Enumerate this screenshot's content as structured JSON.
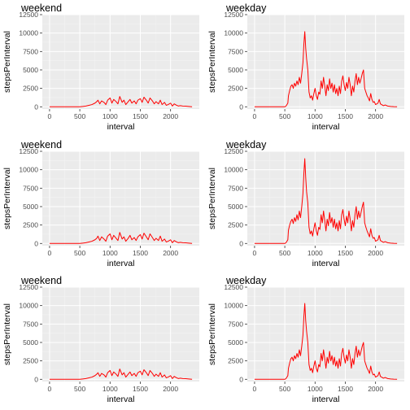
{
  "figure": {
    "background": "#ffffff",
    "panel_background": "#ebebeb",
    "grid_major": "#ffffff",
    "grid_minor": "#f4f4f4",
    "line_color": "#ff0000"
  },
  "chart_data": [
    {
      "type": "line",
      "title": "weekend",
      "xlabel": "interval",
      "ylabel": "stepsPerInterval",
      "xlim": [
        -120,
        2475
      ],
      "ylim": [
        -300,
        12500
      ],
      "xticks": [
        0,
        500,
        1000,
        1500,
        2000
      ],
      "yticks": [
        0,
        2500,
        5000,
        7500,
        10000,
        12500
      ],
      "grid": true,
      "x": [
        0,
        500,
        550,
        600,
        650,
        700,
        750,
        780,
        800,
        830,
        860,
        900,
        930,
        960,
        1000,
        1030,
        1060,
        1100,
        1130,
        1160,
        1200,
        1230,
        1260,
        1300,
        1330,
        1360,
        1400,
        1430,
        1460,
        1500,
        1530,
        1560,
        1600,
        1630,
        1660,
        1700,
        1730,
        1760,
        1800,
        1830,
        1860,
        1900,
        1930,
        1960,
        2000,
        2030,
        2060,
        2100,
        2130,
        2160,
        2200,
        2250,
        2300,
        2355
      ],
      "y": [
        0,
        0,
        50,
        100,
        200,
        300,
        500,
        700,
        900,
        400,
        800,
        600,
        300,
        900,
        1200,
        500,
        1000,
        700,
        400,
        1400,
        600,
        900,
        300,
        700,
        1000,
        500,
        800,
        400,
        900,
        1100,
        600,
        1300,
        900,
        500,
        1200,
        800,
        400,
        700,
        400,
        900,
        300,
        600,
        200,
        300,
        500,
        100,
        400,
        200,
        100,
        150,
        100,
        80,
        50,
        0
      ]
    },
    {
      "type": "line",
      "title": "weekday",
      "xlabel": "interval",
      "ylabel": "stepsPerInterval",
      "xlim": [
        -120,
        2475
      ],
      "ylim": [
        -300,
        12500
      ],
      "xticks": [
        0,
        500,
        1000,
        1500,
        2000
      ],
      "yticks": [
        0,
        2500,
        5000,
        7500,
        10000,
        12500
      ],
      "grid": true,
      "x": [
        0,
        500,
        520,
        550,
        560,
        580,
        600,
        620,
        640,
        660,
        680,
        700,
        720,
        740,
        760,
        780,
        800,
        815,
        830,
        845,
        860,
        880,
        900,
        920,
        940,
        960,
        980,
        1000,
        1020,
        1040,
        1060,
        1080,
        1100,
        1120,
        1140,
        1160,
        1180,
        1200,
        1220,
        1240,
        1260,
        1280,
        1300,
        1320,
        1340,
        1360,
        1380,
        1400,
        1420,
        1440,
        1460,
        1480,
        1500,
        1520,
        1540,
        1560,
        1580,
        1600,
        1620,
        1640,
        1660,
        1680,
        1700,
        1720,
        1740,
        1760,
        1780,
        1800,
        1820,
        1840,
        1860,
        1880,
        1900,
        1920,
        1940,
        1960,
        1980,
        2000,
        2020,
        2040,
        2060,
        2080,
        2100,
        2130,
        2160,
        2200,
        2250,
        2300,
        2355
      ],
      "y": [
        0,
        0,
        100,
        500,
        1500,
        2200,
        2800,
        3000,
        2500,
        3200,
        2800,
        3500,
        3000,
        4000,
        3200,
        4500,
        6000,
        8500,
        10200,
        8000,
        6500,
        5000,
        2000,
        1200,
        1500,
        900,
        1800,
        2500,
        1500,
        1000,
        2000,
        1700,
        3500,
        2500,
        4000,
        2800,
        1500,
        3000,
        2200,
        3800,
        2500,
        3200,
        2000,
        3000,
        1800,
        2500,
        1500,
        2800,
        1800,
        3500,
        4200,
        3000,
        2200,
        3300,
        2500,
        4000,
        3000,
        1500,
        2800,
        2000,
        3500,
        4500,
        3000,
        4000,
        3200,
        3800,
        4500,
        5000,
        2500,
        2000,
        1500,
        1200,
        800,
        1800,
        1000,
        600,
        700,
        300,
        400,
        500,
        1000,
        400,
        300,
        150,
        250,
        100,
        50,
        20,
        0
      ]
    },
    {
      "type": "line",
      "title": "weekend",
      "xlabel": "interval",
      "ylabel": "stepsPerInterval",
      "xlim": [
        -120,
        2475
      ],
      "ylim": [
        -300,
        12500
      ],
      "xticks": [
        0,
        500,
        1000,
        1500,
        2000
      ],
      "yticks": [
        0,
        2500,
        5000,
        7500,
        10000,
        12500
      ],
      "grid": true,
      "x": [
        0,
        500,
        550,
        600,
        650,
        700,
        750,
        780,
        800,
        830,
        860,
        900,
        930,
        960,
        1000,
        1030,
        1060,
        1100,
        1130,
        1160,
        1200,
        1230,
        1260,
        1300,
        1330,
        1360,
        1400,
        1430,
        1460,
        1500,
        1530,
        1560,
        1600,
        1630,
        1660,
        1700,
        1730,
        1760,
        1800,
        1830,
        1860,
        1900,
        1930,
        1960,
        2000,
        2030,
        2060,
        2100,
        2130,
        2160,
        2200,
        2250,
        2300,
        2355
      ],
      "y": [
        0,
        0,
        50,
        100,
        200,
        300,
        500,
        700,
        1000,
        400,
        900,
        600,
        300,
        1000,
        1300,
        500,
        1100,
        700,
        400,
        1500,
        600,
        900,
        300,
        700,
        1100,
        500,
        800,
        400,
        900,
        1200,
        600,
        1400,
        900,
        500,
        1300,
        800,
        400,
        700,
        400,
        1000,
        300,
        600,
        200,
        300,
        500,
        100,
        400,
        200,
        100,
        150,
        100,
        80,
        50,
        0
      ]
    },
    {
      "type": "line",
      "title": "weekday",
      "xlabel": "interval",
      "ylabel": "stepsPerInterval",
      "xlim": [
        -120,
        2475
      ],
      "ylim": [
        -300,
        12500
      ],
      "xticks": [
        0,
        500,
        1000,
        1500,
        2000
      ],
      "yticks": [
        0,
        2500,
        5000,
        7500,
        10000,
        12500
      ],
      "grid": true,
      "x": [
        0,
        500,
        520,
        550,
        560,
        580,
        600,
        620,
        640,
        660,
        680,
        700,
        720,
        740,
        760,
        780,
        800,
        815,
        830,
        845,
        860,
        880,
        900,
        920,
        940,
        960,
        980,
        1000,
        1020,
        1040,
        1060,
        1080,
        1100,
        1120,
        1140,
        1160,
        1180,
        1200,
        1220,
        1240,
        1260,
        1280,
        1300,
        1320,
        1340,
        1360,
        1380,
        1400,
        1420,
        1440,
        1460,
        1480,
        1500,
        1520,
        1540,
        1560,
        1580,
        1600,
        1620,
        1640,
        1660,
        1680,
        1700,
        1720,
        1740,
        1760,
        1780,
        1800,
        1820,
        1840,
        1860,
        1880,
        1900,
        1920,
        1940,
        1960,
        1980,
        2000,
        2020,
        2040,
        2060,
        2080,
        2100,
        2130,
        2160,
        2200,
        2250,
        2300,
        2355
      ],
      "y": [
        0,
        0,
        100,
        500,
        1800,
        2500,
        3000,
        3300,
        2700,
        3500,
        3000,
        3900,
        3200,
        4400,
        3500,
        5000,
        6800,
        9500,
        11500,
        9000,
        7000,
        5500,
        2200,
        1300,
        1700,
        1000,
        2000,
        2800,
        1700,
        1100,
        2200,
        1900,
        3900,
        2800,
        4400,
        3100,
        1700,
        3300,
        2400,
        4200,
        2800,
        3500,
        2200,
        3300,
        2000,
        2800,
        1700,
        3100,
        2000,
        3900,
        4600,
        3300,
        2400,
        3700,
        2800,
        4400,
        3300,
        1700,
        3100,
        2200,
        3900,
        5000,
        3300,
        4400,
        3500,
        4200,
        5000,
        5600,
        2800,
        2200,
        1700,
        1300,
        900,
        2000,
        1100,
        700,
        800,
        300,
        400,
        500,
        1100,
        400,
        300,
        150,
        250,
        100,
        50,
        20,
        0
      ]
    },
    {
      "type": "line",
      "title": "weekend",
      "xlabel": "interval",
      "ylabel": "stepsPerInterval",
      "xlim": [
        -120,
        2475
      ],
      "ylim": [
        -300,
        12500
      ],
      "xticks": [
        0,
        500,
        1000,
        1500,
        2000
      ],
      "yticks": [
        0,
        2500,
        5000,
        7500,
        10000,
        12500
      ],
      "grid": true,
      "x": [
        0,
        500,
        550,
        600,
        650,
        700,
        750,
        780,
        800,
        830,
        860,
        900,
        930,
        960,
        1000,
        1030,
        1060,
        1100,
        1130,
        1160,
        1200,
        1230,
        1260,
        1300,
        1330,
        1360,
        1400,
        1430,
        1460,
        1500,
        1530,
        1560,
        1600,
        1630,
        1660,
        1700,
        1730,
        1760,
        1800,
        1830,
        1860,
        1900,
        1930,
        1960,
        2000,
        2030,
        2060,
        2100,
        2130,
        2160,
        2200,
        2250,
        2300,
        2355
      ],
      "y": [
        0,
        0,
        50,
        100,
        200,
        300,
        500,
        700,
        900,
        400,
        800,
        600,
        300,
        900,
        1200,
        500,
        1000,
        700,
        400,
        1400,
        600,
        900,
        300,
        700,
        1000,
        500,
        800,
        400,
        900,
        1100,
        600,
        1300,
        900,
        500,
        1200,
        800,
        400,
        700,
        400,
        900,
        300,
        600,
        200,
        300,
        500,
        100,
        400,
        200,
        100,
        150,
        100,
        80,
        50,
        0
      ]
    },
    {
      "type": "line",
      "title": "weekday",
      "xlabel": "interval",
      "ylabel": "stepsPerInterval",
      "xlim": [
        -120,
        2475
      ],
      "ylim": [
        -300,
        12500
      ],
      "xticks": [
        0,
        500,
        1000,
        1500,
        2000
      ],
      "yticks": [
        0,
        2500,
        5000,
        7500,
        10000,
        12500
      ],
      "grid": true,
      "x": [
        0,
        500,
        520,
        550,
        560,
        580,
        600,
        620,
        640,
        660,
        680,
        700,
        720,
        740,
        760,
        780,
        800,
        815,
        830,
        845,
        860,
        880,
        900,
        920,
        940,
        960,
        980,
        1000,
        1020,
        1040,
        1060,
        1080,
        1100,
        1120,
        1140,
        1160,
        1180,
        1200,
        1220,
        1240,
        1260,
        1280,
        1300,
        1320,
        1340,
        1360,
        1380,
        1400,
        1420,
        1440,
        1460,
        1480,
        1500,
        1520,
        1540,
        1560,
        1580,
        1600,
        1620,
        1640,
        1660,
        1680,
        1700,
        1720,
        1740,
        1760,
        1780,
        1800,
        1820,
        1840,
        1860,
        1880,
        1900,
        1920,
        1940,
        1960,
        1980,
        2000,
        2020,
        2040,
        2060,
        2080,
        2100,
        2130,
        2160,
        2200,
        2250,
        2300,
        2355
      ],
      "y": [
        0,
        0,
        100,
        500,
        1500,
        2200,
        2800,
        3000,
        2500,
        3200,
        2800,
        3500,
        3000,
        4000,
        3200,
        4500,
        6000,
        8500,
        10300,
        8000,
        6500,
        5000,
        2000,
        1200,
        1500,
        900,
        1800,
        2500,
        1500,
        1000,
        2000,
        1700,
        3500,
        2500,
        4000,
        2800,
        1500,
        3000,
        2200,
        3800,
        2500,
        3200,
        2000,
        3000,
        1800,
        2500,
        1500,
        2800,
        1800,
        3500,
        4200,
        3000,
        2200,
        3300,
        2500,
        4000,
        3000,
        1500,
        2800,
        2000,
        3500,
        4500,
        3000,
        4000,
        3200,
        3800,
        4500,
        5000,
        2500,
        2000,
        1500,
        1200,
        800,
        1800,
        1000,
        600,
        700,
        300,
        400,
        500,
        1000,
        400,
        300,
        150,
        250,
        100,
        50,
        20,
        0
      ]
    }
  ]
}
